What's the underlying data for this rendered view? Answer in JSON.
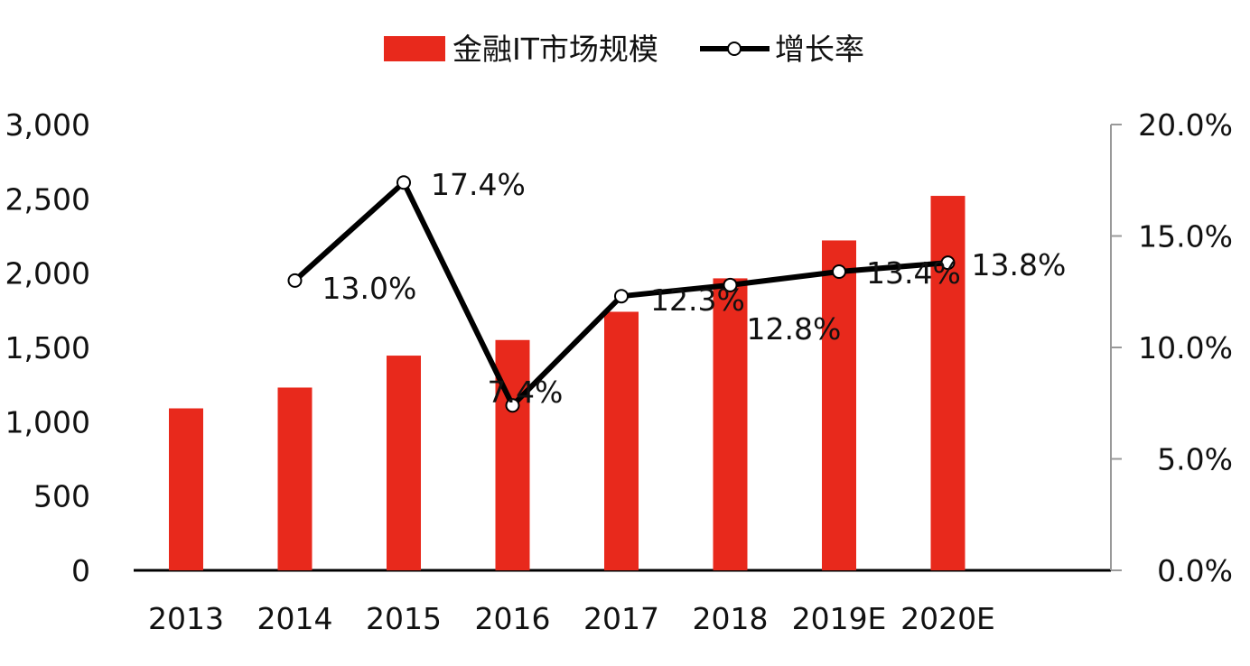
{
  "chart_data": {
    "type": "bar",
    "categories": [
      "2013",
      "2014",
      "2015",
      "2016",
      "2017",
      "2018",
      "2019E",
      "2020E"
    ],
    "series": [
      {
        "name": "金融IT市场规模",
        "type": "bar",
        "axis": "left",
        "color": "#e8291c",
        "values": [
          1090,
          1230,
          1445,
          1550,
          1740,
          1965,
          2220,
          2520
        ]
      },
      {
        "name": "增长率",
        "type": "line",
        "axis": "right",
        "color": "#000000",
        "values": [
          null,
          13.0,
          17.4,
          7.4,
          12.3,
          12.8,
          13.4,
          13.8
        ],
        "labels": [
          "",
          "13.0%",
          "17.4%",
          "7.4%",
          "12.3%",
          "12.8%",
          "13.4%",
          "13.8%"
        ]
      }
    ],
    "y_left": {
      "range": [
        0,
        3000
      ],
      "ticks": [
        0,
        500,
        1000,
        1500,
        2000,
        2500,
        3000
      ],
      "tick_labels": [
        "0",
        "500",
        "1,000",
        "1,500",
        "2,000",
        "2,500",
        "3,000"
      ]
    },
    "y_right": {
      "range": [
        0,
        20
      ],
      "ticks": [
        0,
        5,
        10,
        15,
        20
      ],
      "tick_labels": [
        "0.0%",
        "5.0%",
        "10.0%",
        "15.0%",
        "20.0%"
      ]
    },
    "legend": {
      "position": "top-center",
      "items": [
        "金融IT市场规模",
        "增长率"
      ]
    },
    "grid": false
  }
}
